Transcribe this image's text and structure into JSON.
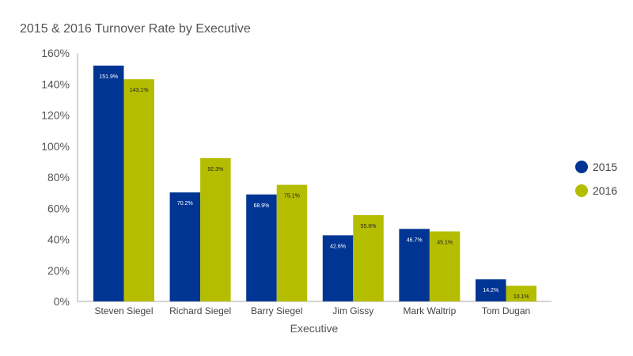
{
  "chart_data": {
    "type": "bar",
    "title": "2015 & 2016 Turnover Rate by Executive",
    "xlabel": "Executive",
    "ylabel": "",
    "ylim": [
      0,
      160
    ],
    "y_ticks": [
      "0%",
      "20%",
      "40%",
      "60%",
      "80%",
      "100%",
      "120%",
      "140%",
      "160%"
    ],
    "y_tick_values": [
      0,
      20,
      40,
      60,
      80,
      100,
      120,
      140,
      160
    ],
    "categories": [
      "Steven Siegel",
      "Richard Siegel",
      "Barry Siegel",
      "Jim Gissy",
      "Mark Waltrip",
      "Tom Dugan"
    ],
    "series": [
      {
        "name": "2015",
        "color": "#003594",
        "label_color": "#ffffff",
        "values": [
          151.9,
          70.2,
          68.9,
          42.6,
          46.7,
          14.2
        ],
        "labels": [
          "151.9%",
          "70.2%",
          "68.9%",
          "42.6%",
          "46.7%",
          "14.2%"
        ]
      },
      {
        "name": "2016",
        "color": "#b5bd00",
        "label_color": "#222222",
        "values": [
          143.1,
          92.3,
          75.1,
          55.6,
          45.1,
          10.1
        ],
        "labels": [
          "143.1%",
          "92.3%",
          "75.1%",
          "55.6%",
          "45.1%",
          "10.1%"
        ]
      }
    ],
    "grid": false,
    "legend_position": "right"
  }
}
